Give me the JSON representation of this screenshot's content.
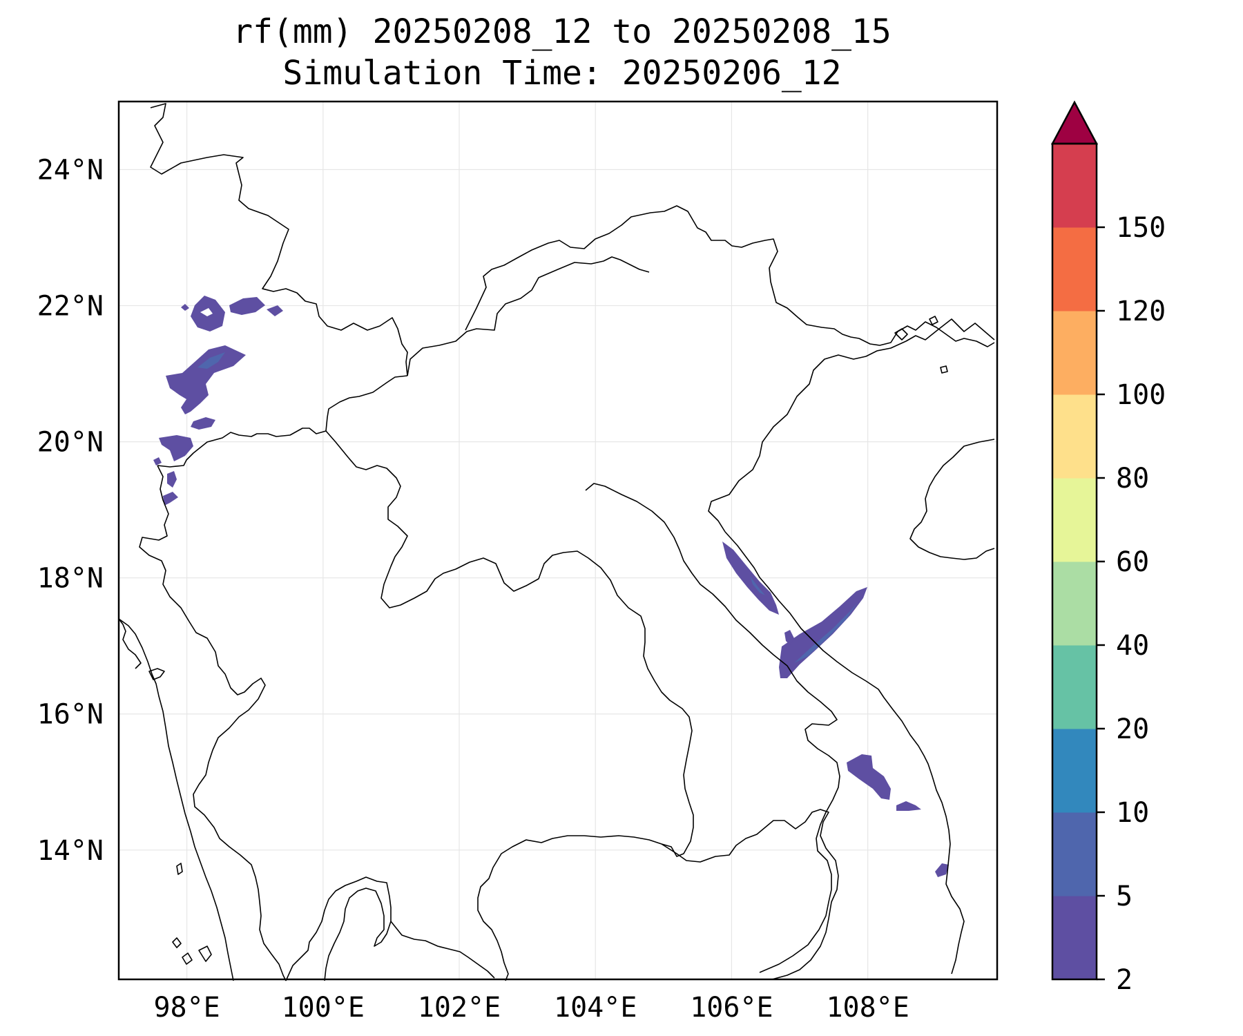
{
  "title_line1": "rf(mm) 20250208_12 to 20250208_15",
  "title_line2": "Simulation Time: 20250206_12",
  "map": {
    "lon_range": [
      97.0,
      109.9
    ],
    "lat_range": [
      12.1,
      25.0
    ],
    "x_ticks": [
      98,
      100,
      102,
      104,
      106,
      108
    ],
    "y_ticks": [
      14,
      16,
      18,
      20,
      22,
      24
    ],
    "x_tick_labels": [
      "98°E",
      "100°E",
      "102°E",
      "104°E",
      "106°E",
      "108°E"
    ],
    "y_tick_labels": [
      "14°N",
      "16°N",
      "18°N",
      "20°N",
      "22°N",
      "24°N"
    ],
    "grid": true
  },
  "colorbar": {
    "levels": [
      "2",
      "5",
      "10",
      "20",
      "40",
      "60",
      "80",
      "100",
      "120",
      "150"
    ],
    "colors": [
      "#5e4fa2",
      "#4f66ad",
      "#3288bd",
      "#66c2a5",
      "#abdda4",
      "#e6f598",
      "#fee08b",
      "#fdae61",
      "#f46d43",
      "#d53e4f"
    ],
    "extend_color": "#9e0142",
    "extend": "max"
  },
  "rain_colors": {
    "light": "#5e4fa2",
    "medium": "#4f66ad"
  }
}
